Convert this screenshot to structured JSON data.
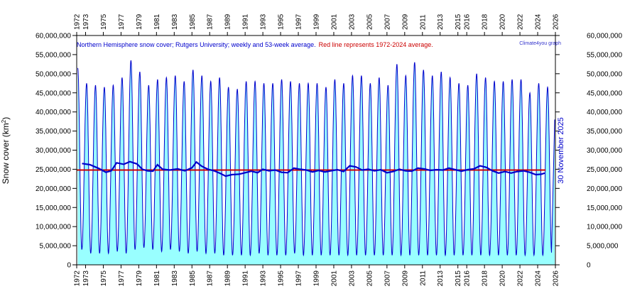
{
  "chart_data": {
    "type": "line",
    "title": "Northern Hemisphere snow cover; Rutgers University; weekly and 53-week average.",
    "title_note": "Red line represents 1972-2024 average.",
    "credit": "Climate4you graph",
    "date_label": "30 November 2025",
    "ylabel": "Snow cover (km",
    "ylabel_sup": "2",
    "ylabel_end": ")",
    "ylim": [
      0,
      60000000
    ],
    "xlim": [
      1972.0,
      2026.0
    ],
    "y_ticks": [
      {
        "value": 0,
        "label": "0"
      },
      {
        "value": 5000000,
        "label": "5,000,000"
      },
      {
        "value": 10000000,
        "label": "10,000,000"
      },
      {
        "value": 15000000,
        "label": "15,000,000"
      },
      {
        "value": 20000000,
        "label": "20,000,000"
      },
      {
        "value": 25000000,
        "label": "25,000,000"
      },
      {
        "value": 30000000,
        "label": "30,000,000"
      },
      {
        "value": 35000000,
        "label": "35,000,000"
      },
      {
        "value": 40000000,
        "label": "40,000,000"
      },
      {
        "value": 45000000,
        "label": "45,000,000"
      },
      {
        "value": 50000000,
        "label": "50,000,000"
      },
      {
        "value": 55000000,
        "label": "55,000,000"
      },
      {
        "value": 60000000,
        "label": "60,000,000"
      }
    ],
    "x_ticks": [
      1972,
      1973,
      1975,
      1977,
      1979,
      1981,
      1983,
      1985,
      1987,
      1989,
      1991,
      1993,
      1995,
      1997,
      1999,
      2001,
      2003,
      2005,
      2007,
      2009,
      2011,
      2013,
      2015,
      2016,
      2018,
      2020,
      2022,
      2024,
      2026
    ],
    "average_1972_2024": 24800000,
    "annual_max": [
      {
        "year": 1972,
        "value": 51500000
      },
      {
        "year": 1973,
        "value": 47500000
      },
      {
        "year": 1974,
        "value": 47000000
      },
      {
        "year": 1975,
        "value": 46500000
      },
      {
        "year": 1976,
        "value": 47000000
      },
      {
        "year": 1977,
        "value": 49000000
      },
      {
        "year": 1978,
        "value": 53500000
      },
      {
        "year": 1979,
        "value": 50500000
      },
      {
        "year": 1980,
        "value": 47000000
      },
      {
        "year": 1981,
        "value": 48500000
      },
      {
        "year": 1982,
        "value": 49000000
      },
      {
        "year": 1983,
        "value": 49500000
      },
      {
        "year": 1984,
        "value": 48000000
      },
      {
        "year": 1985,
        "value": 51000000
      },
      {
        "year": 1986,
        "value": 49500000
      },
      {
        "year": 1987,
        "value": 48000000
      },
      {
        "year": 1988,
        "value": 49000000
      },
      {
        "year": 1989,
        "value": 46500000
      },
      {
        "year": 1990,
        "value": 46000000
      },
      {
        "year": 1991,
        "value": 48000000
      },
      {
        "year": 1992,
        "value": 48000000
      },
      {
        "year": 1993,
        "value": 47500000
      },
      {
        "year": 1994,
        "value": 47500000
      },
      {
        "year": 1995,
        "value": 48500000
      },
      {
        "year": 1996,
        "value": 48000000
      },
      {
        "year": 1997,
        "value": 47500000
      },
      {
        "year": 1998,
        "value": 47500000
      },
      {
        "year": 1999,
        "value": 47500000
      },
      {
        "year": 2000,
        "value": 46500000
      },
      {
        "year": 2001,
        "value": 48500000
      },
      {
        "year": 2002,
        "value": 47500000
      },
      {
        "year": 2003,
        "value": 49500000
      },
      {
        "year": 2004,
        "value": 49500000
      },
      {
        "year": 2005,
        "value": 47500000
      },
      {
        "year": 2006,
        "value": 49000000
      },
      {
        "year": 2007,
        "value": 47000000
      },
      {
        "year": 2008,
        "value": 52500000
      },
      {
        "year": 2009,
        "value": 49500000
      },
      {
        "year": 2010,
        "value": 53000000
      },
      {
        "year": 2011,
        "value": 51000000
      },
      {
        "year": 2012,
        "value": 49500000
      },
      {
        "year": 2013,
        "value": 50500000
      },
      {
        "year": 2014,
        "value": 49000000
      },
      {
        "year": 2015,
        "value": 47500000
      },
      {
        "year": 2016,
        "value": 47000000
      },
      {
        "year": 2017,
        "value": 50000000
      },
      {
        "year": 2018,
        "value": 49000000
      },
      {
        "year": 2019,
        "value": 48000000
      },
      {
        "year": 2020,
        "value": 48000000
      },
      {
        "year": 2021,
        "value": 48500000
      },
      {
        "year": 2022,
        "value": 48500000
      },
      {
        "year": 2023,
        "value": 45000000
      },
      {
        "year": 2024,
        "value": 47500000
      },
      {
        "year": 2025,
        "value": 46500000
      }
    ],
    "annual_min": [
      {
        "year": 1972,
        "value": 4000000
      },
      {
        "year": 1973,
        "value": 3000000
      },
      {
        "year": 1974,
        "value": 3000000
      },
      {
        "year": 1975,
        "value": 3000000
      },
      {
        "year": 1976,
        "value": 3500000
      },
      {
        "year": 1977,
        "value": 3000000
      },
      {
        "year": 1978,
        "value": 4000000
      },
      {
        "year": 1979,
        "value": 4500000
      },
      {
        "year": 1980,
        "value": 4000000
      },
      {
        "year": 1981,
        "value": 3500000
      },
      {
        "year": 1982,
        "value": 4000000
      },
      {
        "year": 1983,
        "value": 3500000
      },
      {
        "year": 1984,
        "value": 3000000
      },
      {
        "year": 1985,
        "value": 3500000
      },
      {
        "year": 1986,
        "value": 3000000
      },
      {
        "year": 1987,
        "value": 3000000
      },
      {
        "year": 1988,
        "value": 2500000
      },
      {
        "year": 1989,
        "value": 2500000
      },
      {
        "year": 1990,
        "value": 2500000
      },
      {
        "year": 1991,
        "value": 2500000
      },
      {
        "year": 1992,
        "value": 3000000
      },
      {
        "year": 1993,
        "value": 2500000
      },
      {
        "year": 1994,
        "value": 2500000
      },
      {
        "year": 1995,
        "value": 2500000
      },
      {
        "year": 1996,
        "value": 3000000
      },
      {
        "year": 1997,
        "value": 2500000
      },
      {
        "year": 1998,
        "value": 2500000
      },
      {
        "year": 1999,
        "value": 2500000
      },
      {
        "year": 2000,
        "value": 2500000
      },
      {
        "year": 2001,
        "value": 2500000
      },
      {
        "year": 2002,
        "value": 2500000
      },
      {
        "year": 2003,
        "value": 2500000
      },
      {
        "year": 2004,
        "value": 2500000
      },
      {
        "year": 2005,
        "value": 2500000
      },
      {
        "year": 2006,
        "value": 2500000
      },
      {
        "year": 2007,
        "value": 2500000
      },
      {
        "year": 2008,
        "value": 2500000
      },
      {
        "year": 2009,
        "value": 2500000
      },
      {
        "year": 2010,
        "value": 2500000
      },
      {
        "year": 2011,
        "value": 2500000
      },
      {
        "year": 2012,
        "value": 2500000
      },
      {
        "year": 2013,
        "value": 2500000
      },
      {
        "year": 2014,
        "value": 2500000
      },
      {
        "year": 2015,
        "value": 2500000
      },
      {
        "year": 2016,
        "value": 2500000
      },
      {
        "year": 2017,
        "value": 2500000
      },
      {
        "year": 2018,
        "value": 2500000
      },
      {
        "year": 2019,
        "value": 2500000
      },
      {
        "year": 2020,
        "value": 2500000
      },
      {
        "year": 2021,
        "value": 2500000
      },
      {
        "year": 2022,
        "value": 2500000
      },
      {
        "year": 2023,
        "value": 2500000
      },
      {
        "year": 2024,
        "value": 2500000
      },
      {
        "year": 2025,
        "value": 3000000
      }
    ],
    "series_53wk_average": [
      {
        "x": 1972.6,
        "y": 26500000
      },
      {
        "x": 1973.5,
        "y": 26200000
      },
      {
        "x": 1974.5,
        "y": 25200000
      },
      {
        "x": 1975.3,
        "y": 24200000
      },
      {
        "x": 1975.9,
        "y": 24600000
      },
      {
        "x": 1976.5,
        "y": 26700000
      },
      {
        "x": 1977.3,
        "y": 26300000
      },
      {
        "x": 1978.0,
        "y": 27000000
      },
      {
        "x": 1978.8,
        "y": 26400000
      },
      {
        "x": 1979.4,
        "y": 25000000
      },
      {
        "x": 1980.0,
        "y": 24600000
      },
      {
        "x": 1980.6,
        "y": 24500000
      },
      {
        "x": 1981.1,
        "y": 26200000
      },
      {
        "x": 1981.7,
        "y": 25000000
      },
      {
        "x": 1982.5,
        "y": 24800000
      },
      {
        "x": 1983.4,
        "y": 25100000
      },
      {
        "x": 1984.2,
        "y": 24600000
      },
      {
        "x": 1985.0,
        "y": 25400000
      },
      {
        "x": 1985.5,
        "y": 26900000
      },
      {
        "x": 1986.1,
        "y": 25800000
      },
      {
        "x": 1986.8,
        "y": 25000000
      },
      {
        "x": 1987.5,
        "y": 24600000
      },
      {
        "x": 1988.2,
        "y": 23900000
      },
      {
        "x": 1988.8,
        "y": 23200000
      },
      {
        "x": 1989.5,
        "y": 23600000
      },
      {
        "x": 1990.3,
        "y": 23700000
      },
      {
        "x": 1991.0,
        "y": 24100000
      },
      {
        "x": 1991.7,
        "y": 24500000
      },
      {
        "x": 1992.4,
        "y": 24100000
      },
      {
        "x": 1993.0,
        "y": 25000000
      },
      {
        "x": 1993.7,
        "y": 24600000
      },
      {
        "x": 1994.4,
        "y": 24800000
      },
      {
        "x": 1995.1,
        "y": 24200000
      },
      {
        "x": 1995.8,
        "y": 24100000
      },
      {
        "x": 1996.5,
        "y": 25300000
      },
      {
        "x": 1997.2,
        "y": 25000000
      },
      {
        "x": 1997.9,
        "y": 24800000
      },
      {
        "x": 1998.6,
        "y": 24300000
      },
      {
        "x": 1999.3,
        "y": 24700000
      },
      {
        "x": 2000.0,
        "y": 24300000
      },
      {
        "x": 2000.7,
        "y": 24600000
      },
      {
        "x": 2001.4,
        "y": 24900000
      },
      {
        "x": 2002.1,
        "y": 24400000
      },
      {
        "x": 2002.8,
        "y": 25900000
      },
      {
        "x": 2003.5,
        "y": 25600000
      },
      {
        "x": 2004.2,
        "y": 24800000
      },
      {
        "x": 2004.9,
        "y": 25000000
      },
      {
        "x": 2005.6,
        "y": 24600000
      },
      {
        "x": 2006.3,
        "y": 24900000
      },
      {
        "x": 2007.0,
        "y": 24100000
      },
      {
        "x": 2007.7,
        "y": 24400000
      },
      {
        "x": 2008.4,
        "y": 25000000
      },
      {
        "x": 2009.1,
        "y": 24600000
      },
      {
        "x": 2009.8,
        "y": 24500000
      },
      {
        "x": 2010.5,
        "y": 25300000
      },
      {
        "x": 2011.2,
        "y": 25100000
      },
      {
        "x": 2011.9,
        "y": 24700000
      },
      {
        "x": 2012.6,
        "y": 24900000
      },
      {
        "x": 2013.3,
        "y": 24800000
      },
      {
        "x": 2014.0,
        "y": 25300000
      },
      {
        "x": 2014.7,
        "y": 24900000
      },
      {
        "x": 2015.4,
        "y": 24500000
      },
      {
        "x": 2016.1,
        "y": 24900000
      },
      {
        "x": 2016.8,
        "y": 25100000
      },
      {
        "x": 2017.5,
        "y": 25900000
      },
      {
        "x": 2018.2,
        "y": 25500000
      },
      {
        "x": 2018.9,
        "y": 24600000
      },
      {
        "x": 2019.6,
        "y": 24000000
      },
      {
        "x": 2020.3,
        "y": 24400000
      },
      {
        "x": 2021.0,
        "y": 24000000
      },
      {
        "x": 2021.7,
        "y": 24400000
      },
      {
        "x": 2022.4,
        "y": 24600000
      },
      {
        "x": 2023.1,
        "y": 24200000
      },
      {
        "x": 2023.8,
        "y": 23600000
      },
      {
        "x": 2024.4,
        "y": 23700000
      },
      {
        "x": 2024.8,
        "y": 24000000
      }
    ],
    "colors": {
      "weekly": "#0000cc",
      "fill": "#99ffff",
      "average_line": "#cc0000",
      "running_average": "#0000cc",
      "title_blue": "#0000cc",
      "title_red": "#cc0000",
      "axis": "#000000"
    }
  }
}
